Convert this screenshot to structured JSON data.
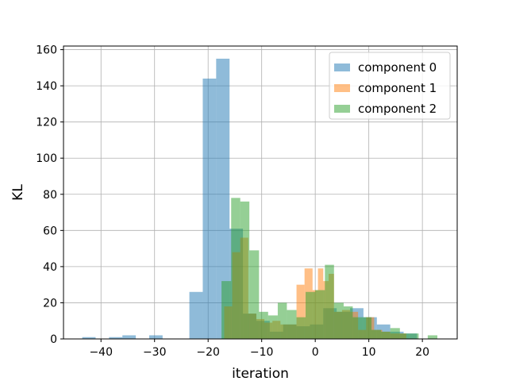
{
  "chart_data": {
    "type": "histogram",
    "title": "",
    "xlabel": "iteration",
    "ylabel": "KL",
    "xlim": [
      -47,
      26.5
    ],
    "ylim": [
      0,
      162
    ],
    "xticks": [
      -40,
      -30,
      -20,
      -10,
      0,
      10,
      20
    ],
    "yticks": [
      0,
      20,
      40,
      60,
      80,
      100,
      120,
      140,
      160
    ],
    "grid": true,
    "legend_position": "top-right",
    "series": [
      {
        "name": "component 0",
        "color": "#1f77b4",
        "opacity": 0.5,
        "bins": [
          {
            "x0": -43.5,
            "x1": -41.0,
            "count": 1
          },
          {
            "x0": -38.5,
            "x1": -36.0,
            "count": 1
          },
          {
            "x0": -36.0,
            "x1": -33.5,
            "count": 2
          },
          {
            "x0": -31.0,
            "x1": -28.5,
            "count": 2
          },
          {
            "x0": -23.5,
            "x1": -21.0,
            "count": 26
          },
          {
            "x0": -21.0,
            "x1": -18.5,
            "count": 144
          },
          {
            "x0": -18.5,
            "x1": -16.0,
            "count": 155
          },
          {
            "x0": -16.0,
            "x1": -13.5,
            "count": 61
          },
          {
            "x0": -13.5,
            "x1": -11.0,
            "count": 14
          },
          {
            "x0": -11.0,
            "x1": -8.5,
            "count": 10
          },
          {
            "x0": -8.5,
            "x1": -6.0,
            "count": 4
          },
          {
            "x0": -6.0,
            "x1": -3.5,
            "count": 8
          },
          {
            "x0": -3.5,
            "x1": -1.0,
            "count": 7
          },
          {
            "x0": -1.0,
            "x1": 1.5,
            "count": 8
          },
          {
            "x0": 1.5,
            "x1": 4.0,
            "count": 17
          },
          {
            "x0": 4.0,
            "x1": 6.5,
            "count": 15
          },
          {
            "x0": 6.5,
            "x1": 9.0,
            "count": 17
          },
          {
            "x0": 9.0,
            "x1": 11.5,
            "count": 12
          },
          {
            "x0": 11.5,
            "x1": 14.0,
            "count": 8
          },
          {
            "x0": 14.0,
            "x1": 16.5,
            "count": 4
          },
          {
            "x0": 16.5,
            "x1": 19.0,
            "count": 3
          }
        ]
      },
      {
        "name": "component 1",
        "color": "#ff7f0e",
        "opacity": 0.5,
        "bins": [
          {
            "x0": -17.0,
            "x1": -15.5,
            "count": 18
          },
          {
            "x0": -15.5,
            "x1": -14.0,
            "count": 48
          },
          {
            "x0": -14.0,
            "x1": -12.5,
            "count": 56
          },
          {
            "x0": -12.5,
            "x1": -11.0,
            "count": 14
          },
          {
            "x0": -11.0,
            "x1": -9.5,
            "count": 11
          },
          {
            "x0": -9.5,
            "x1": -8.0,
            "count": 9
          },
          {
            "x0": -8.0,
            "x1": -6.5,
            "count": 10
          },
          {
            "x0": -6.5,
            "x1": -5.0,
            "count": 8
          },
          {
            "x0": -5.0,
            "x1": -3.5,
            "count": 8
          },
          {
            "x0": -3.5,
            "x1": -2.0,
            "count": 30
          },
          {
            "x0": -2.0,
            "x1": -0.5,
            "count": 39
          },
          {
            "x0": -0.5,
            "x1": 0.5,
            "count": 27
          },
          {
            "x0": 0.5,
            "x1": 1.5,
            "count": 39
          },
          {
            "x0": 1.5,
            "x1": 2.5,
            "count": 32
          },
          {
            "x0": 2.5,
            "x1": 3.5,
            "count": 36
          },
          {
            "x0": 3.5,
            "x1": 5.0,
            "count": 15
          },
          {
            "x0": 5.0,
            "x1": 6.5,
            "count": 16
          },
          {
            "x0": 6.5,
            "x1": 8.0,
            "count": 15
          },
          {
            "x0": 8.0,
            "x1": 9.5,
            "count": 5
          },
          {
            "x0": 9.5,
            "x1": 11.0,
            "count": 12
          },
          {
            "x0": 11.0,
            "x1": 12.5,
            "count": 5
          },
          {
            "x0": 12.5,
            "x1": 14.0,
            "count": 4
          },
          {
            "x0": 14.0,
            "x1": 15.5,
            "count": 3
          },
          {
            "x0": 15.5,
            "x1": 17.0,
            "count": 3
          }
        ]
      },
      {
        "name": "component 2",
        "color": "#2ca02c",
        "opacity": 0.5,
        "bins": [
          {
            "x0": -17.5,
            "x1": -15.7,
            "count": 32
          },
          {
            "x0": -15.7,
            "x1": -14.0,
            "count": 78
          },
          {
            "x0": -14.0,
            "x1": -12.3,
            "count": 76
          },
          {
            "x0": -12.3,
            "x1": -10.5,
            "count": 49
          },
          {
            "x0": -10.5,
            "x1": -8.8,
            "count": 15
          },
          {
            "x0": -8.8,
            "x1": -7.0,
            "count": 13
          },
          {
            "x0": -7.0,
            "x1": -5.3,
            "count": 20
          },
          {
            "x0": -5.3,
            "x1": -3.5,
            "count": 16
          },
          {
            "x0": -3.5,
            "x1": -1.8,
            "count": 12
          },
          {
            "x0": -1.8,
            "x1": 0.0,
            "count": 26
          },
          {
            "x0": 0.0,
            "x1": 1.8,
            "count": 27
          },
          {
            "x0": 1.8,
            "x1": 3.5,
            "count": 41
          },
          {
            "x0": 3.5,
            "x1": 5.3,
            "count": 20
          },
          {
            "x0": 5.3,
            "x1": 7.0,
            "count": 18
          },
          {
            "x0": 7.0,
            "x1": 8.8,
            "count": 12
          },
          {
            "x0": 8.8,
            "x1": 10.5,
            "count": 12
          },
          {
            "x0": 10.5,
            "x1": 12.3,
            "count": 5
          },
          {
            "x0": 12.3,
            "x1": 14.0,
            "count": 4
          },
          {
            "x0": 14.0,
            "x1": 15.8,
            "count": 6
          },
          {
            "x0": 15.8,
            "x1": 17.5,
            "count": 3
          },
          {
            "x0": 17.5,
            "x1": 19.3,
            "count": 3
          },
          {
            "x0": 19.3,
            "x1": 21.0,
            "count": 0
          },
          {
            "x0": 21.0,
            "x1": 22.8,
            "count": 2
          }
        ]
      }
    ]
  }
}
